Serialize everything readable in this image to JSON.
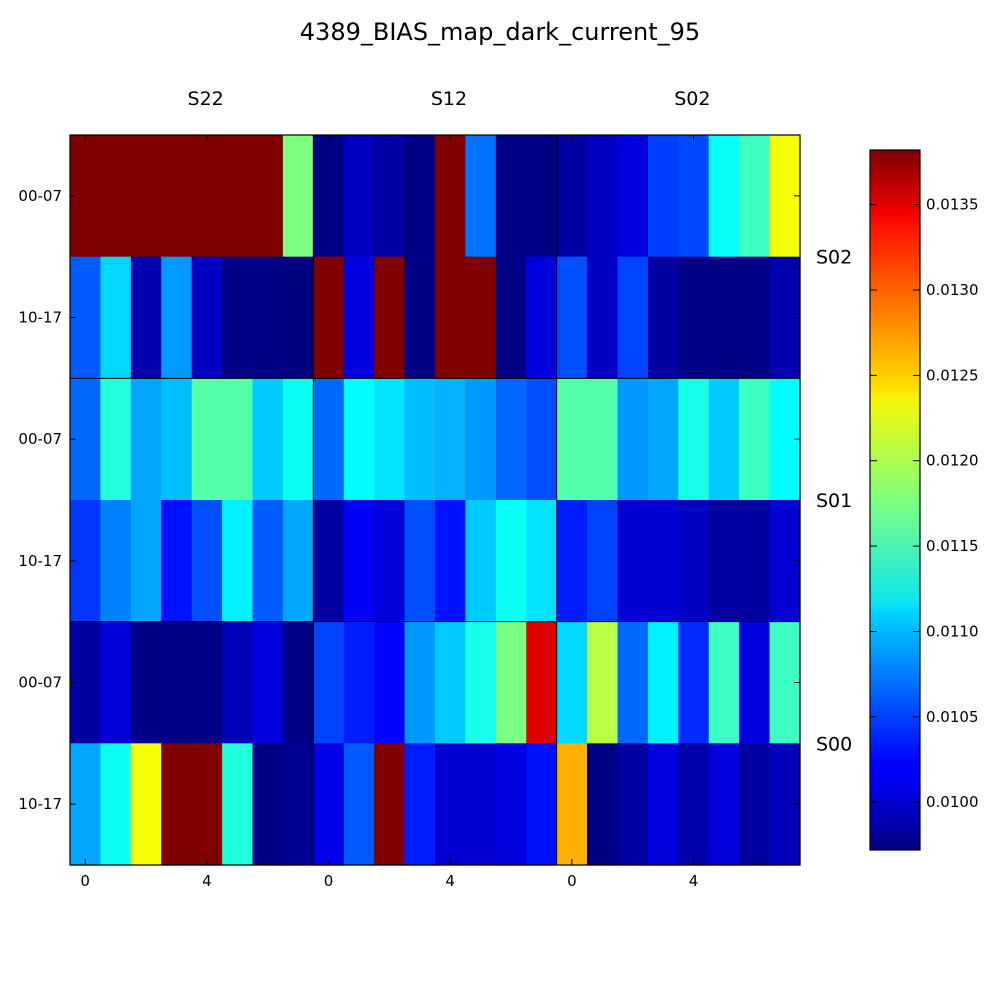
{
  "chart_data": {
    "type": "heatmap",
    "title": "4389_BIAS_map_dark_current_95",
    "colormap": "jet",
    "vmin": 0.00972,
    "vmax": 0.01382,
    "column_groups": [
      "S22",
      "S12",
      "S02"
    ],
    "row_groups": [
      "S02",
      "S01",
      "S00"
    ],
    "row_tick_labels": [
      "00-07",
      "10-17",
      "00-07",
      "10-17",
      "00-07",
      "10-17"
    ],
    "x_tick_labels": [
      {
        "column": 0,
        "label": "0"
      },
      {
        "column": 4,
        "label": "4"
      },
      {
        "column": 8,
        "label": "0"
      },
      {
        "column": 12,
        "label": "4"
      },
      {
        "column": 16,
        "label": "0"
      },
      {
        "column": 20,
        "label": "4"
      }
    ],
    "colorbar_ticks": [
      {
        "value": 0.01,
        "label": "0.0100"
      },
      {
        "value": 0.0105,
        "label": "0.0105"
      },
      {
        "value": 0.011,
        "label": "0.0110"
      },
      {
        "value": 0.0115,
        "label": "0.0115"
      },
      {
        "value": 0.012,
        "label": "0.0120"
      },
      {
        "value": 0.0125,
        "label": "0.0125"
      },
      {
        "value": 0.013,
        "label": "0.0130"
      },
      {
        "value": 0.0135,
        "label": "0.0135"
      }
    ],
    "values": [
      [
        0.01382,
        0.01382,
        0.01382,
        0.01382,
        0.01382,
        0.01382,
        0.01382,
        0.01177,
        0.00975,
        0.00998,
        0.00986,
        0.00975,
        0.01382,
        0.0107,
        0.00975,
        0.00975,
        0.00986,
        0.00998,
        0.0101,
        0.01048,
        0.01052,
        0.01128,
        0.0115,
        0.01225
      ],
      [
        0.0106,
        0.0111,
        0.0099,
        0.01085,
        0.00998,
        0.00975,
        0.00975,
        0.00972,
        0.01382,
        0.0101,
        0.01382,
        0.00975,
        0.01382,
        0.01382,
        0.00975,
        0.0101,
        0.01055,
        0.01,
        0.0105,
        0.00985,
        0.00975,
        0.00975,
        0.00975,
        0.0099
      ],
      [
        0.01065,
        0.0114,
        0.0109,
        0.011,
        0.0116,
        0.0116,
        0.01105,
        0.0113,
        0.01065,
        0.01125,
        0.01115,
        0.011,
        0.01095,
        0.01085,
        0.01065,
        0.01055,
        0.0116,
        0.0116,
        0.01085,
        0.0109,
        0.01135,
        0.01105,
        0.0115,
        0.01125
      ],
      [
        0.01045,
        0.01075,
        0.0109,
        0.0103,
        0.01055,
        0.0112,
        0.0106,
        0.0109,
        0.00985,
        0.0102,
        0.01008,
        0.01055,
        0.0103,
        0.01105,
        0.0113,
        0.01115,
        0.01035,
        0.0105,
        0.01005,
        0.01005,
        0.01,
        0.00985,
        0.00985,
        0.01005
      ],
      [
        0.00985,
        0.01008,
        0.00975,
        0.00975,
        0.00975,
        0.00995,
        0.0101,
        0.00975,
        0.0105,
        0.01035,
        0.01025,
        0.01085,
        0.01105,
        0.01135,
        0.01175,
        0.01345,
        0.0111,
        0.012,
        0.01065,
        0.0112,
        0.0104,
        0.0115,
        0.0101,
        0.0115
      ],
      [
        0.0109,
        0.0113,
        0.01225,
        0.01382,
        0.01382,
        0.0114,
        0.00975,
        0.0098,
        0.01015,
        0.0106,
        0.01382,
        0.01035,
        0.01005,
        0.01005,
        0.0101,
        0.0103,
        0.0126,
        0.00975,
        0.00985,
        0.0101,
        0.0099,
        0.0101,
        0.00985,
        0.00995
      ]
    ]
  }
}
